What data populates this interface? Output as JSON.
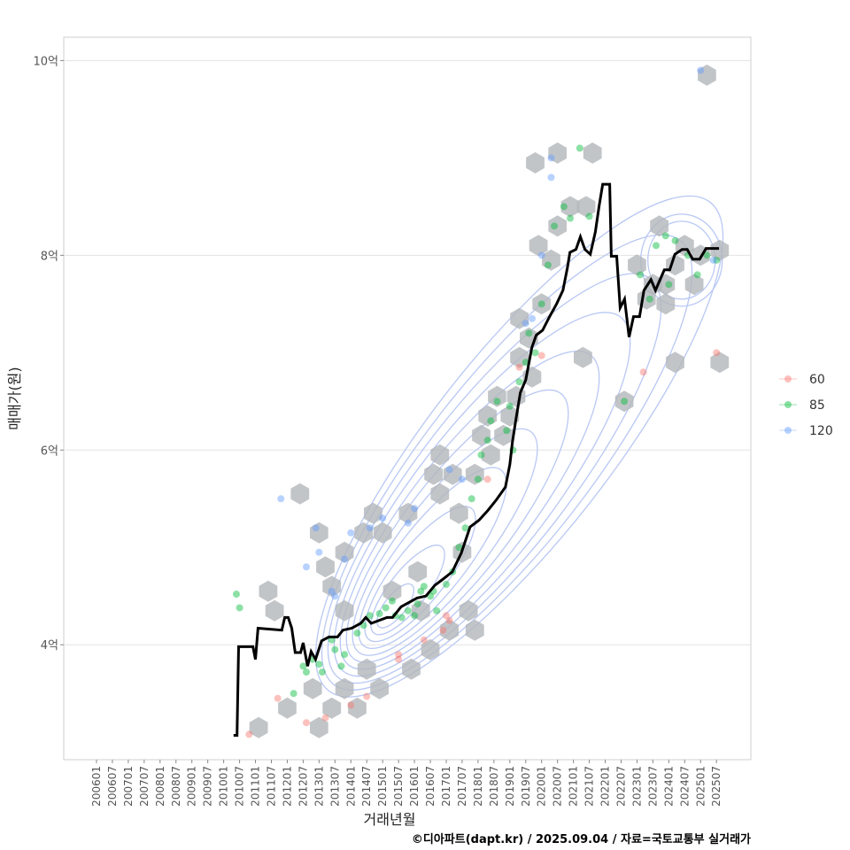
{
  "chart_data": {
    "type": "scatter",
    "title": "",
    "xlabel": "거래년월",
    "ylabel": "매매가(원)",
    "caption": "©디아파트(dapt.kr) / 2025.09.04 / 자료=국토교통부 실거래가",
    "xlim": [
      2004.97,
      2026.58
    ],
    "ylim": [
      2.82,
      10.24
    ],
    "grid": true,
    "y_ticks": [
      {
        "v": 4,
        "label": "4억"
      },
      {
        "v": 6,
        "label": "6억"
      },
      {
        "v": 8,
        "label": "8억"
      },
      {
        "v": 10,
        "label": "10억"
      }
    ],
    "x_tick_labels": [
      "200601",
      "200607",
      "200701",
      "200707",
      "200801",
      "200807",
      "200901",
      "200907",
      "201001",
      "201007",
      "201101",
      "201107",
      "201201",
      "201207",
      "201301",
      "201307",
      "201401",
      "201407",
      "201501",
      "201507",
      "201601",
      "201607",
      "201701",
      "201707",
      "201801",
      "201807",
      "201901",
      "201907",
      "202001",
      "202007",
      "202101",
      "202107",
      "202201",
      "202207",
      "202301",
      "202307",
      "202401",
      "202407",
      "202501",
      "202507"
    ],
    "legend": {
      "placement": "right",
      "entries": [
        {
          "label": "60",
          "color": "#F8766D"
        },
        {
          "label": "85",
          "color": "#00BA38"
        },
        {
          "label": "120",
          "color": "#619CFF"
        }
      ]
    },
    "median_line": [
      [
        2010.31,
        3.07
      ],
      [
        2010.42,
        3.07
      ],
      [
        2010.47,
        3.98
      ],
      [
        2010.92,
        3.98
      ],
      [
        2011.0,
        3.85
      ],
      [
        2011.08,
        4.17
      ],
      [
        2011.83,
        4.15
      ],
      [
        2011.92,
        4.28
      ],
      [
        2012.03,
        4.28
      ],
      [
        2012.14,
        4.17
      ],
      [
        2012.25,
        3.92
      ],
      [
        2012.42,
        3.92
      ],
      [
        2012.5,
        4.02
      ],
      [
        2012.64,
        3.78
      ],
      [
        2012.75,
        3.93
      ],
      [
        2012.89,
        3.85
      ],
      [
        2013.08,
        4.04
      ],
      [
        2013.31,
        4.08
      ],
      [
        2013.58,
        4.08
      ],
      [
        2013.75,
        4.15
      ],
      [
        2014.03,
        4.17
      ],
      [
        2014.31,
        4.22
      ],
      [
        2014.47,
        4.28
      ],
      [
        2014.64,
        4.22
      ],
      [
        2015.14,
        4.28
      ],
      [
        2015.31,
        4.28
      ],
      [
        2015.58,
        4.39
      ],
      [
        2016.08,
        4.48
      ],
      [
        2016.36,
        4.5
      ],
      [
        2016.64,
        4.61
      ],
      [
        2016.92,
        4.68
      ],
      [
        2017.19,
        4.75
      ],
      [
        2017.47,
        4.94
      ],
      [
        2017.75,
        5.21
      ],
      [
        2018.03,
        5.28
      ],
      [
        2018.31,
        5.38
      ],
      [
        2018.58,
        5.49
      ],
      [
        2018.86,
        5.62
      ],
      [
        2019.0,
        5.85
      ],
      [
        2019.08,
        6.08
      ],
      [
        2019.19,
        6.31
      ],
      [
        2019.33,
        6.59
      ],
      [
        2019.5,
        6.72
      ],
      [
        2019.69,
        7.05
      ],
      [
        2019.83,
        7.18
      ],
      [
        2020.03,
        7.23
      ],
      [
        2020.25,
        7.37
      ],
      [
        2020.47,
        7.5
      ],
      [
        2020.67,
        7.64
      ],
      [
        2020.81,
        7.87
      ],
      [
        2020.89,
        8.03
      ],
      [
        2021.08,
        8.06
      ],
      [
        2021.22,
        8.19
      ],
      [
        2021.36,
        8.06
      ],
      [
        2021.53,
        8.01
      ],
      [
        2021.69,
        8.24
      ],
      [
        2021.81,
        8.51
      ],
      [
        2021.92,
        8.73
      ],
      [
        2022.14,
        8.73
      ],
      [
        2022.19,
        7.99
      ],
      [
        2022.36,
        7.99
      ],
      [
        2022.47,
        7.46
      ],
      [
        2022.61,
        7.55
      ],
      [
        2022.75,
        7.16
      ],
      [
        2022.89,
        7.37
      ],
      [
        2023.08,
        7.37
      ],
      [
        2023.22,
        7.64
      ],
      [
        2023.44,
        7.75
      ],
      [
        2023.58,
        7.64
      ],
      [
        2023.86,
        7.85
      ],
      [
        2024.03,
        7.85
      ],
      [
        2024.19,
        8.01
      ],
      [
        2024.42,
        8.06
      ],
      [
        2024.58,
        8.06
      ],
      [
        2024.75,
        7.96
      ],
      [
        2024.97,
        7.96
      ],
      [
        2025.17,
        8.07
      ],
      [
        2025.58,
        8.07
      ]
    ],
    "series": [
      {
        "name": "60",
        "points": [
          [
            2010.8,
            3.08
          ],
          [
            2011.7,
            3.45
          ],
          [
            2012.6,
            3.2
          ],
          [
            2013.2,
            3.25
          ],
          [
            2014.0,
            3.38
          ],
          [
            2014.5,
            3.47
          ],
          [
            2015.5,
            3.85
          ],
          [
            2015.5,
            3.9
          ],
          [
            2016.3,
            4.05
          ],
          [
            2016.9,
            4.15
          ],
          [
            2017.0,
            4.3
          ],
          [
            2017.1,
            4.25
          ],
          [
            2018.3,
            5.7
          ],
          [
            2019.3,
            6.85
          ],
          [
            2020.0,
            6.97
          ],
          [
            2023.2,
            6.8
          ],
          [
            2025.5,
            7.0
          ]
        ]
      },
      {
        "name": "85",
        "points": [
          [
            2010.4,
            4.52
          ],
          [
            2010.5,
            4.38
          ],
          [
            2012.2,
            3.5
          ],
          [
            2012.5,
            3.78
          ],
          [
            2012.6,
            3.72
          ],
          [
            2012.8,
            3.85
          ],
          [
            2013.0,
            3.8
          ],
          [
            2013.1,
            3.72
          ],
          [
            2013.4,
            4.05
          ],
          [
            2013.5,
            3.95
          ],
          [
            2013.7,
            3.78
          ],
          [
            2013.8,
            3.9
          ],
          [
            2014.2,
            4.12
          ],
          [
            2014.4,
            4.2
          ],
          [
            2014.6,
            4.3
          ],
          [
            2014.9,
            4.32
          ],
          [
            2015.1,
            4.38
          ],
          [
            2015.3,
            4.45
          ],
          [
            2015.4,
            4.3
          ],
          [
            2015.6,
            4.28
          ],
          [
            2015.8,
            4.35
          ],
          [
            2016.0,
            4.3
          ],
          [
            2016.1,
            4.42
          ],
          [
            2016.2,
            4.55
          ],
          [
            2016.3,
            4.6
          ],
          [
            2016.5,
            4.5
          ],
          [
            2016.6,
            4.55
          ],
          [
            2016.7,
            4.35
          ],
          [
            2017.0,
            4.62
          ],
          [
            2017.2,
            4.75
          ],
          [
            2017.4,
            5.0
          ],
          [
            2017.6,
            5.2
          ],
          [
            2017.8,
            5.5
          ],
          [
            2018.0,
            5.7
          ],
          [
            2018.1,
            5.95
          ],
          [
            2018.3,
            6.1
          ],
          [
            2018.4,
            6.3
          ],
          [
            2018.6,
            6.5
          ],
          [
            2018.9,
            6.2
          ],
          [
            2019.0,
            6.45
          ],
          [
            2019.1,
            6.0
          ],
          [
            2019.3,
            6.7
          ],
          [
            2019.5,
            6.9
          ],
          [
            2019.6,
            7.2
          ],
          [
            2019.8,
            7.0
          ],
          [
            2020.0,
            7.5
          ],
          [
            2020.2,
            7.9
          ],
          [
            2020.4,
            8.3
          ],
          [
            2020.7,
            8.5
          ],
          [
            2020.9,
            8.38
          ],
          [
            2021.2,
            9.1
          ],
          [
            2021.5,
            8.4
          ],
          [
            2022.6,
            6.5
          ],
          [
            2023.1,
            7.8
          ],
          [
            2023.4,
            7.55
          ],
          [
            2023.6,
            8.1
          ],
          [
            2023.9,
            8.2
          ],
          [
            2024.0,
            7.7
          ],
          [
            2024.2,
            8.15
          ],
          [
            2024.6,
            8.0
          ],
          [
            2024.9,
            7.8
          ],
          [
            2025.2,
            8.0
          ],
          [
            2025.5,
            7.95
          ]
        ]
      },
      {
        "name": "120",
        "points": [
          [
            2011.8,
            5.5
          ],
          [
            2012.6,
            4.8
          ],
          [
            2012.9,
            5.2
          ],
          [
            2013.0,
            4.95
          ],
          [
            2013.4,
            4.55
          ],
          [
            2013.5,
            4.5
          ],
          [
            2013.8,
            4.88
          ],
          [
            2014.0,
            5.15
          ],
          [
            2014.6,
            5.2
          ],
          [
            2015.0,
            5.3
          ],
          [
            2015.8,
            5.25
          ],
          [
            2016.0,
            5.4
          ],
          [
            2017.1,
            5.8
          ],
          [
            2017.5,
            5.7
          ],
          [
            2019.5,
            7.3
          ],
          [
            2019.7,
            7.35
          ],
          [
            2020.0,
            8.0
          ],
          [
            2020.3,
            8.8
          ],
          [
            2020.3,
            9.0
          ],
          [
            2025.0,
            9.9
          ],
          [
            2025.4,
            7.95
          ]
        ]
      }
    ],
    "hex_centers": [
      [
        2011.1,
        3.15
      ],
      [
        2011.4,
        4.55
      ],
      [
        2011.6,
        4.35
      ],
      [
        2012.0,
        3.35
      ],
      [
        2012.4,
        5.55
      ],
      [
        2012.8,
        3.55
      ],
      [
        2013.0,
        5.15
      ],
      [
        2013.0,
        3.15
      ],
      [
        2013.2,
        4.8
      ],
      [
        2013.4,
        4.6
      ],
      [
        2013.4,
        3.35
      ],
      [
        2013.8,
        4.95
      ],
      [
        2013.8,
        3.55
      ],
      [
        2013.8,
        4.35
      ],
      [
        2014.2,
        3.35
      ],
      [
        2014.4,
        5.15
      ],
      [
        2014.5,
        3.75
      ],
      [
        2014.7,
        5.35
      ],
      [
        2014.9,
        3.55
      ],
      [
        2015.0,
        5.15
      ],
      [
        2015.3,
        4.55
      ],
      [
        2015.8,
        5.35
      ],
      [
        2015.9,
        3.75
      ],
      [
        2016.1,
        4.75
      ],
      [
        2016.2,
        4.35
      ],
      [
        2016.5,
        3.95
      ],
      [
        2016.6,
        5.75
      ],
      [
        2016.8,
        5.95
      ],
      [
        2016.8,
        5.55
      ],
      [
        2017.2,
        5.75
      ],
      [
        2017.1,
        4.15
      ],
      [
        2017.4,
        5.35
      ],
      [
        2017.5,
        4.95
      ],
      [
        2017.7,
        4.35
      ],
      [
        2017.9,
        5.75
      ],
      [
        2017.9,
        4.15
      ],
      [
        2018.1,
        6.15
      ],
      [
        2018.3,
        6.35
      ],
      [
        2018.4,
        5.95
      ],
      [
        2018.6,
        6.55
      ],
      [
        2018.8,
        6.15
      ],
      [
        2019.0,
        6.35
      ],
      [
        2019.2,
        6.55
      ],
      [
        2019.3,
        6.95
      ],
      [
        2019.3,
        7.35
      ],
      [
        2019.6,
        7.15
      ],
      [
        2019.7,
        6.75
      ],
      [
        2019.8,
        8.95
      ],
      [
        2019.9,
        8.1
      ],
      [
        2020.0,
        7.5
      ],
      [
        2020.3,
        7.95
      ],
      [
        2020.5,
        9.05
      ],
      [
        2020.5,
        8.3
      ],
      [
        2020.9,
        8.5
      ],
      [
        2021.3,
        6.95
      ],
      [
        2021.4,
        8.5
      ],
      [
        2021.6,
        9.05
      ],
      [
        2022.6,
        6.5
      ],
      [
        2023.0,
        7.9
      ],
      [
        2023.3,
        7.55
      ],
      [
        2023.5,
        7.7
      ],
      [
        2023.7,
        8.3
      ],
      [
        2023.9,
        7.7
      ],
      [
        2023.9,
        7.5
      ],
      [
        2024.2,
        6.9
      ],
      [
        2024.2,
        7.9
      ],
      [
        2024.5,
        8.1
      ],
      [
        2024.8,
        7.7
      ],
      [
        2025.0,
        8.0
      ],
      [
        2025.2,
        9.85
      ],
      [
        2025.6,
        8.05
      ],
      [
        2025.6,
        6.9
      ]
    ],
    "contour_levels": [
      1,
      2,
      3,
      4,
      5,
      6,
      7,
      8,
      9,
      10,
      11
    ]
  }
}
